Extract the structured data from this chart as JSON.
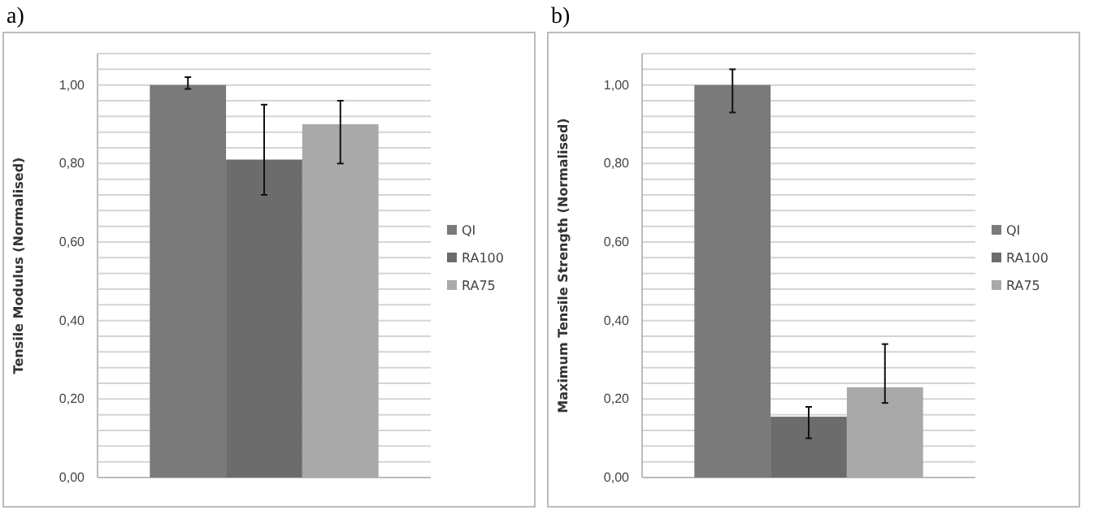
{
  "chart_data": [
    {
      "type": "bar",
      "title": "a)",
      "ylabel": "Tensile Modulus (Normalised)",
      "categories": [
        null
      ],
      "series": [
        {
          "name": "QI",
          "color": "#7a7a7a",
          "values": [
            1.0
          ],
          "errors": [
            [
              0.99,
              1.02
            ]
          ]
        },
        {
          "name": "RA100",
          "color": "#6c6c6c",
          "values": [
            0.81
          ],
          "errors": [
            [
              0.72,
              0.95
            ]
          ]
        },
        {
          "name": "RA75",
          "color": "#a9a9a9",
          "values": [
            0.9
          ],
          "errors": [
            [
              0.8,
              0.96
            ]
          ]
        }
      ],
      "ylim": [
        0,
        1.08
      ],
      "yticks": [
        {
          "value": 0,
          "label": "0,00"
        },
        {
          "value": 0.04,
          "label": null
        },
        {
          "value": 0.08,
          "label": null
        },
        {
          "value": 0.12,
          "label": null
        },
        {
          "value": 0.16,
          "label": null
        },
        {
          "value": 0.2,
          "label": "0,20"
        },
        {
          "value": 0.24,
          "label": null
        },
        {
          "value": 0.28,
          "label": null
        },
        {
          "value": 0.32,
          "label": null
        },
        {
          "value": 0.36,
          "label": null
        },
        {
          "value": 0.4,
          "label": "0,40"
        },
        {
          "value": 0.44,
          "label": null
        },
        {
          "value": 0.48,
          "label": null
        },
        {
          "value": 0.52,
          "label": null
        },
        {
          "value": 0.56,
          "label": null
        },
        {
          "value": 0.6,
          "label": "0,60"
        },
        {
          "value": 0.64,
          "label": null
        },
        {
          "value": 0.68,
          "label": null
        },
        {
          "value": 0.72,
          "label": null
        },
        {
          "value": 0.76,
          "label": null
        },
        {
          "value": 0.8,
          "label": "0,80"
        },
        {
          "value": 0.84,
          "label": null
        },
        {
          "value": 0.88,
          "label": null
        },
        {
          "value": 0.92,
          "label": null
        },
        {
          "value": 0.96,
          "label": null
        },
        {
          "value": 1.0,
          "label": "1,00"
        },
        {
          "value": 1.04,
          "label": null
        },
        {
          "value": 1.08,
          "label": null
        }
      ],
      "grid": "y",
      "legend": "right"
    },
    {
      "type": "bar",
      "title": "b)",
      "ylabel": "Maximum Tensile Strength (Normalised)",
      "categories": [
        null
      ],
      "series": [
        {
          "name": "QI",
          "color": "#7a7a7a",
          "values": [
            1.0
          ],
          "errors": [
            [
              0.93,
              1.04
            ]
          ]
        },
        {
          "name": "RA100",
          "color": "#6c6c6c",
          "values": [
            0.155
          ],
          "errors": [
            [
              0.1,
              0.18
            ]
          ]
        },
        {
          "name": "RA75",
          "color": "#a9a9a9",
          "values": [
            0.23
          ],
          "errors": [
            [
              0.19,
              0.34
            ]
          ]
        }
      ],
      "ylim": [
        0,
        1.08
      ],
      "yticks": [
        {
          "value": 0,
          "label": "0,00"
        },
        {
          "value": 0.04,
          "label": null
        },
        {
          "value": 0.08,
          "label": null
        },
        {
          "value": 0.12,
          "label": null
        },
        {
          "value": 0.16,
          "label": null
        },
        {
          "value": 0.2,
          "label": "0,20"
        },
        {
          "value": 0.24,
          "label": null
        },
        {
          "value": 0.28,
          "label": null
        },
        {
          "value": 0.32,
          "label": null
        },
        {
          "value": 0.36,
          "label": null
        },
        {
          "value": 0.4,
          "label": "0,40"
        },
        {
          "value": 0.44,
          "label": null
        },
        {
          "value": 0.48,
          "label": null
        },
        {
          "value": 0.52,
          "label": null
        },
        {
          "value": 0.56,
          "label": null
        },
        {
          "value": 0.6,
          "label": "0,60"
        },
        {
          "value": 0.64,
          "label": null
        },
        {
          "value": 0.68,
          "label": null
        },
        {
          "value": 0.72,
          "label": null
        },
        {
          "value": 0.76,
          "label": null
        },
        {
          "value": 0.8,
          "label": "0,80"
        },
        {
          "value": 0.84,
          "label": null
        },
        {
          "value": 0.88,
          "label": null
        },
        {
          "value": 0.92,
          "label": null
        },
        {
          "value": 0.96,
          "label": null
        },
        {
          "value": 1.0,
          "label": "1,00"
        },
        {
          "value": 1.04,
          "label": null
        },
        {
          "value": 1.08,
          "label": null
        }
      ],
      "grid": "y",
      "legend": "right"
    }
  ]
}
